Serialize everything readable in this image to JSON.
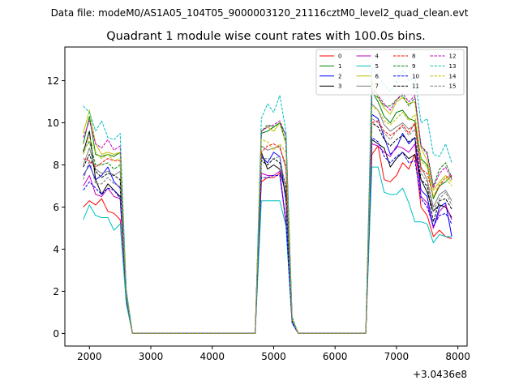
{
  "chart_data": {
    "type": "line",
    "suptitle": "Data file: modeM0/AS1A05_104T05_9000003120_21116cztM0_level2_quad_clean.evt",
    "title": "Quadrant 1 module wise count rates with 100.0s bins.",
    "xlabel": "",
    "ylabel": "",
    "x_offset_label": "+3.0436e8",
    "xlim": [
      1600,
      8150
    ],
    "ylim": [
      -0.6,
      13.6
    ],
    "x_ticks": [
      2000,
      3000,
      4000,
      5000,
      6000,
      7000,
      8000
    ],
    "y_ticks": [
      0,
      2,
      4,
      6,
      8,
      10,
      12
    ],
    "legend_position": "top-right",
    "segments": [
      {
        "x": [
          1900,
          2000,
          2100,
          2200,
          2300,
          2400,
          2500,
          2600,
          2700
        ]
      },
      {
        "x": [
          4700,
          4800,
          4900,
          5000,
          5100,
          5200,
          5300,
          5400,
          5500
        ]
      },
      {
        "x": [
          6500,
          6600,
          6700,
          6800,
          6900,
          7000,
          7100,
          7200,
          7300,
          7400,
          7500,
          7600,
          7700,
          7800,
          7900
        ]
      }
    ],
    "series": [
      {
        "name": "0",
        "color": "#ff0000",
        "dash": "solid",
        "values": [
          [
            6.0,
            6.3,
            6.1,
            6.4,
            5.8,
            5.7,
            5.4,
            1.5,
            0
          ],
          [
            0,
            7.2,
            7.4,
            7.4,
            7.6,
            5.2,
            0.5,
            0,
            0
          ],
          [
            0,
            8.5,
            8.9,
            7.3,
            7.2,
            7.5,
            8.1,
            7.8,
            8.5,
            6.0,
            5.6,
            4.6,
            4.9,
            4.6,
            4.5
          ]
        ]
      },
      {
        "name": "1",
        "color": "#008000",
        "dash": "solid",
        "values": [
          [
            9.0,
            10.3,
            8.5,
            8.4,
            8.5,
            8.4,
            8.6,
            2.0,
            0
          ],
          [
            0,
            9.5,
            9.6,
            9.8,
            10.0,
            9.4,
            0.7,
            0,
            0
          ],
          [
            0,
            11.5,
            11.0,
            10.3,
            10.0,
            10.5,
            10.6,
            10.2,
            10.1,
            8.3,
            8.0,
            6.4,
            7.0,
            7.2,
            7.5
          ]
        ]
      },
      {
        "name": "2",
        "color": "#0000ff",
        "dash": "solid",
        "values": [
          [
            7.5,
            8.0,
            7.3,
            7.5,
            7.9,
            7.2,
            6.9,
            1.9,
            0
          ],
          [
            0,
            8.4,
            8.1,
            8.6,
            8.4,
            6.3,
            0.6,
            0,
            0
          ],
          [
            0,
            10.4,
            10.2,
            9.3,
            8.5,
            8.8,
            9.5,
            9.0,
            9.3,
            6.8,
            6.5,
            5.0,
            6.0,
            6.2,
            4.6
          ]
        ]
      },
      {
        "name": "3",
        "color": "#000000",
        "dash": "solid",
        "values": [
          [
            8.6,
            9.6,
            7.3,
            6.6,
            7.1,
            6.8,
            6.5,
            1.8,
            0
          ],
          [
            0,
            8.6,
            7.8,
            8.0,
            7.8,
            6.6,
            0.6,
            0,
            0
          ],
          [
            0,
            9.2,
            9.0,
            8.8,
            7.9,
            8.3,
            8.6,
            8.3,
            8.5,
            7.3,
            6.7,
            5.8,
            6.1,
            6.0,
            5.5
          ]
        ]
      },
      {
        "name": "4",
        "color": "#c000c0",
        "dash": "solid",
        "values": [
          [
            7.0,
            7.5,
            6.6,
            6.5,
            6.9,
            6.5,
            6.4,
            1.7,
            0
          ],
          [
            0,
            7.6,
            7.5,
            7.5,
            7.7,
            5.3,
            0.5,
            0,
            0
          ],
          [
            0,
            9.0,
            8.9,
            8.6,
            8.4,
            8.9,
            8.8,
            8.6,
            9.0,
            6.5,
            6.2,
            5.0,
            5.8,
            6.1,
            5.4
          ]
        ]
      },
      {
        "name": "5",
        "color": "#00bfbf",
        "dash": "solid",
        "values": [
          [
            5.4,
            6.1,
            5.6,
            5.5,
            5.5,
            4.9,
            5.2,
            1.4,
            0
          ],
          [
            0,
            6.3,
            6.3,
            6.3,
            6.3,
            5.1,
            0.5,
            0,
            0
          ],
          [
            0,
            7.9,
            7.9,
            6.7,
            6.6,
            6.6,
            6.9,
            6.2,
            5.3,
            5.3,
            5.2,
            4.3,
            4.7,
            4.6,
            4.6
          ]
        ]
      },
      {
        "name": "6",
        "color": "#bfbf00",
        "dash": "solid",
        "values": [
          [
            9.5,
            10.6,
            9.0,
            8.5,
            8.6,
            8.5,
            8.6,
            2.0,
            0
          ],
          [
            0,
            9.6,
            9.8,
            9.6,
            10.0,
            9.0,
            0.7,
            0,
            0
          ],
          [
            0,
            12.0,
            11.2,
            10.7,
            10.4,
            11.0,
            11.2,
            10.9,
            11.0,
            8.8,
            8.2,
            6.8,
            7.2,
            7.5,
            7.2
          ]
        ]
      },
      {
        "name": "7",
        "color": "#7f7f7f",
        "dash": "solid",
        "values": [
          [
            8.0,
            8.8,
            7.8,
            7.6,
            7.7,
            7.5,
            7.7,
            1.8,
            0
          ],
          [
            0,
            8.9,
            8.7,
            8.8,
            8.9,
            7.8,
            0.6,
            0,
            0
          ],
          [
            0,
            10.9,
            10.6,
            9.9,
            9.6,
            9.8,
            10.0,
            9.7,
            9.9,
            7.9,
            7.3,
            6.0,
            6.6,
            6.8,
            6.3
          ]
        ]
      },
      {
        "name": "8",
        "color": "#ff0000",
        "dash": "dashed",
        "values": [
          [
            8.3,
            8.2,
            7.9,
            8.1,
            8.3,
            8.2,
            8.2,
            1.9,
            0
          ],
          [
            0,
            8.6,
            8.9,
            9.0,
            8.8,
            8.0,
            0.7,
            0,
            0
          ],
          [
            0,
            10.0,
            10.1,
            9.6,
            9.4,
            9.6,
            9.9,
            9.5,
            10.0,
            7.8,
            7.6,
            6.5,
            7.0,
            7.4,
            7.5
          ]
        ]
      },
      {
        "name": "9",
        "color": "#008000",
        "dash": "dashed",
        "values": [
          [
            8.7,
            9.1,
            8.0,
            8.0,
            8.1,
            7.8,
            8.0,
            1.8,
            0
          ],
          [
            0,
            9.6,
            9.9,
            9.8,
            10.0,
            9.1,
            0.7,
            0,
            0
          ],
          [
            0,
            11.4,
            11.2,
            10.8,
            10.8,
            11.1,
            11.3,
            10.8,
            11.2,
            8.9,
            8.6,
            7.0,
            7.8,
            8.1,
            7.4
          ]
        ]
      },
      {
        "name": "10",
        "color": "#0000ff",
        "dash": "dashed",
        "values": [
          [
            6.8,
            7.2,
            6.9,
            6.6,
            6.9,
            6.8,
            6.4,
            1.7,
            0
          ],
          [
            0,
            7.4,
            7.4,
            7.5,
            7.5,
            5.4,
            0.5,
            0,
            0
          ],
          [
            0,
            9.3,
            9.1,
            8.4,
            8.1,
            8.4,
            8.6,
            8.1,
            8.2,
            6.4,
            6.0,
            5.1,
            5.6,
            5.7,
            5.2
          ]
        ]
      },
      {
        "name": "11",
        "color": "#000000",
        "dash": "dashed",
        "values": [
          [
            7.9,
            8.5,
            7.7,
            7.4,
            7.6,
            7.5,
            7.3,
            1.8,
            0
          ],
          [
            0,
            8.2,
            8.0,
            8.3,
            8.1,
            7.0,
            0.6,
            0,
            0
          ],
          [
            0,
            10.0,
            9.8,
            9.2,
            8.9,
            9.2,
            9.4,
            9.1,
            9.3,
            7.3,
            7.0,
            5.3,
            6.3,
            6.4,
            5.9
          ]
        ]
      },
      {
        "name": "12",
        "color": "#c000c0",
        "dash": "dashed",
        "values": [
          [
            9.3,
            10.1,
            9.0,
            8.8,
            9.2,
            8.7,
            8.9,
            2.0,
            0
          ],
          [
            0,
            9.6,
            9.8,
            9.9,
            10.1,
            9.4,
            0.7,
            0,
            0
          ],
          [
            0,
            11.6,
            11.3,
            10.9,
            10.6,
            11.1,
            11.4,
            11.0,
            11.3,
            8.9,
            8.5,
            6.9,
            7.6,
            7.9,
            7.3
          ]
        ]
      },
      {
        "name": "13",
        "color": "#00bfbf",
        "dash": "dashed",
        "values": [
          [
            10.8,
            10.5,
            9.6,
            10.1,
            9.3,
            9.2,
            9.5,
            2.1,
            0
          ],
          [
            0,
            10.2,
            10.9,
            10.5,
            11.3,
            9.6,
            0.8,
            0,
            0
          ],
          [
            0,
            12.6,
            12.2,
            11.8,
            11.5,
            11.9,
            12.5,
            12.0,
            12.2,
            10.0,
            10.2,
            8.5,
            8.4,
            9.0,
            8.1
          ]
        ]
      },
      {
        "name": "14",
        "color": "#bfbf00",
        "dash": "dashed",
        "values": [
          [
            8.5,
            9.3,
            8.6,
            8.3,
            8.5,
            8.2,
            8.3,
            1.9,
            0
          ],
          [
            0,
            9.2,
            9.1,
            8.7,
            9.0,
            8.6,
            0.7,
            0,
            0
          ],
          [
            0,
            10.8,
            10.6,
            10.1,
            9.9,
            10.2,
            10.5,
            10.1,
            10.4,
            8.2,
            7.9,
            6.5,
            7.1,
            7.4,
            7.0
          ]
        ]
      },
      {
        "name": "15",
        "color": "#7f7f7f",
        "dash": "dashed",
        "values": [
          [
            7.3,
            8.2,
            7.1,
            7.1,
            7.4,
            7.1,
            7.0,
            1.8,
            0
          ],
          [
            0,
            8.3,
            8.3,
            8.3,
            8.4,
            6.8,
            0.6,
            0,
            0
          ],
          [
            0,
            10.2,
            10.0,
            9.5,
            9.2,
            9.6,
            9.8,
            9.4,
            9.7,
            7.6,
            7.2,
            5.8,
            6.4,
            6.7,
            6.1
          ]
        ]
      }
    ]
  }
}
